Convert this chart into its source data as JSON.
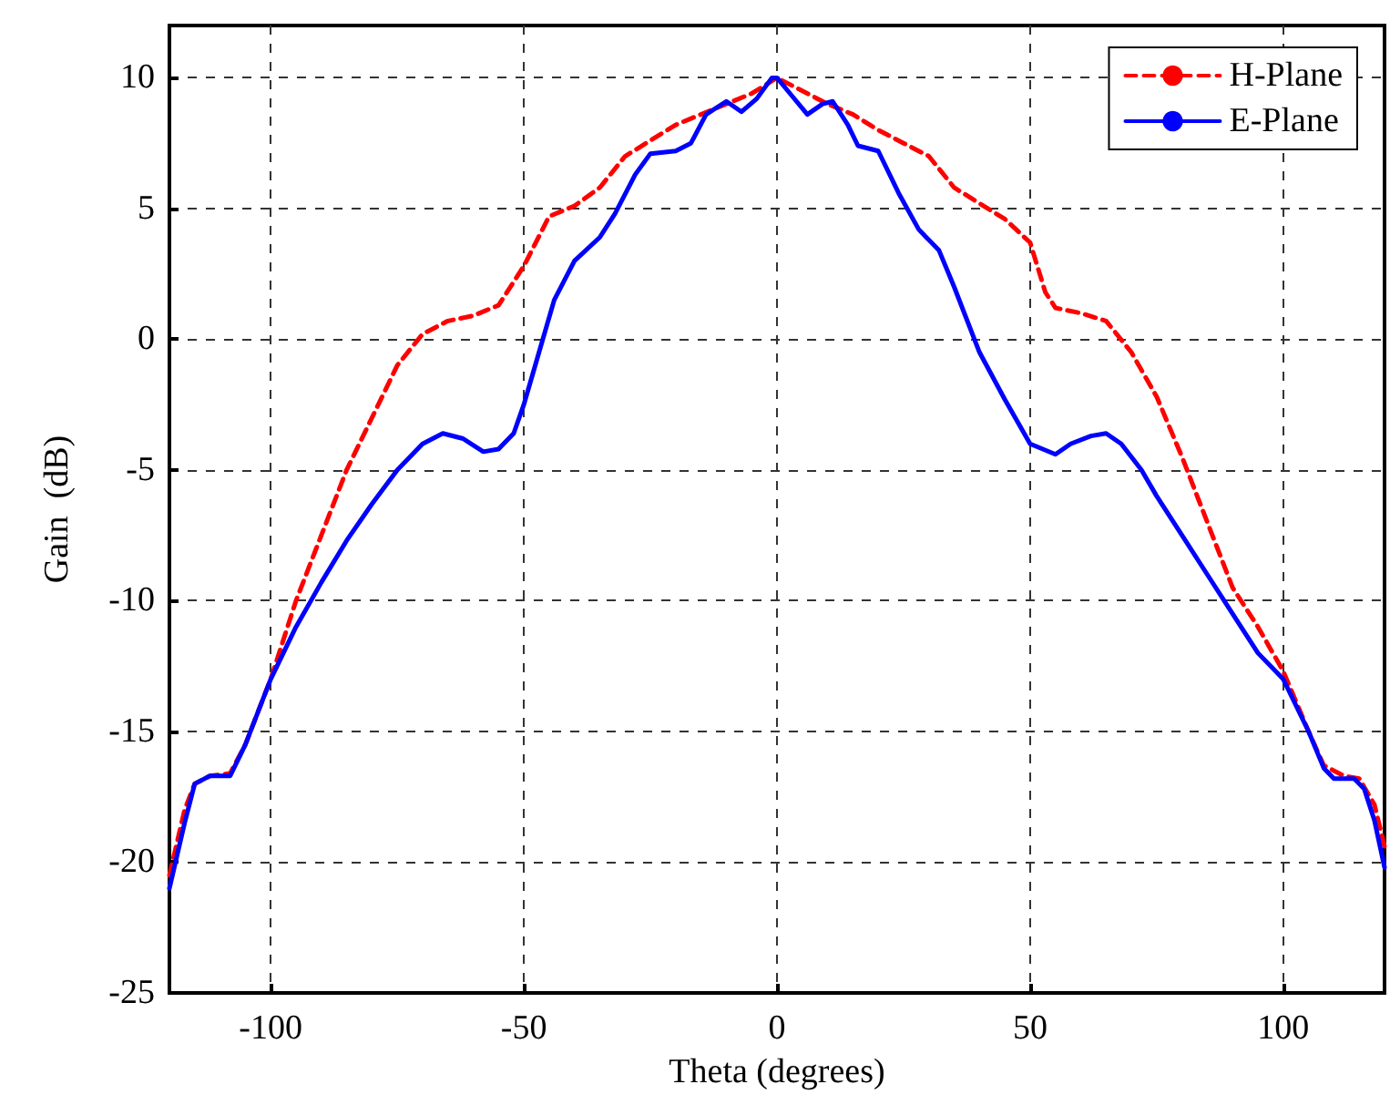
{
  "chart_data": {
    "type": "line",
    "xlabel": "Theta (degrees)",
    "ylabel": "Gain  (dB)",
    "xlim": [
      -120,
      120
    ],
    "xticks": [
      -100,
      -50,
      0,
      50,
      100
    ],
    "ylim": [
      -25,
      12
    ],
    "yticks": [
      -25,
      -20,
      -15,
      -10,
      -5,
      0,
      5,
      10
    ],
    "grid": true,
    "legend": "top right",
    "marker": "none",
    "series": [
      {
        "name": "H-Plane",
        "color": "#ff0000",
        "line_style": "dashed",
        "x": [
          -120,
          -117,
          -115,
          -112,
          -108,
          -105,
          -100,
          -95,
          -90,
          -85,
          -80,
          -75,
          -70,
          -65,
          -60,
          -55,
          -50,
          -45,
          -40,
          -35,
          -30,
          -25,
          -20,
          -15,
          -10,
          -5,
          0,
          5,
          10,
          15,
          20,
          25,
          30,
          35,
          40,
          45,
          50,
          53,
          55,
          60,
          65,
          70,
          75,
          80,
          85,
          90,
          95,
          100,
          105,
          108,
          112,
          115,
          118,
          120
        ],
        "values": [
          -20.5,
          -18,
          -17,
          -16.7,
          -16.6,
          -15.5,
          -13,
          -10,
          -7.5,
          -5,
          -3,
          -1,
          0.2,
          0.7,
          0.9,
          1.3,
          2.8,
          4.7,
          5.1,
          5.8,
          7,
          7.6,
          8.2,
          8.6,
          9,
          9.4,
          10,
          9.5,
          9,
          8.6,
          8,
          7.5,
          7,
          5.8,
          5.2,
          4.6,
          3.7,
          1.8,
          1.2,
          1,
          0.7,
          -0.5,
          -2.2,
          -4.5,
          -7,
          -9.5,
          -11,
          -12.7,
          -15,
          -16.3,
          -16.7,
          -16.8,
          -17.8,
          -19.4
        ]
      },
      {
        "name": "E-Plane",
        "color": "#0000ff",
        "line_style": "solid",
        "x": [
          -120,
          -117,
          -115,
          -112,
          -108,
          -105,
          -100,
          -95,
          -90,
          -85,
          -80,
          -75,
          -70,
          -66,
          -62,
          -58,
          -55,
          -52,
          -50,
          -47,
          -44,
          -40,
          -35,
          -32,
          -28,
          -25,
          -20,
          -17,
          -14,
          -10,
          -7,
          -4,
          -1,
          0,
          3,
          6,
          9,
          11,
          14,
          16,
          20,
          24,
          28,
          32,
          35,
          40,
          45,
          50,
          55,
          58,
          62,
          65,
          68,
          72,
          75,
          80,
          85,
          90,
          95,
          100,
          105,
          108,
          110,
          114,
          116,
          118,
          120
        ],
        "values": [
          -21,
          -18.5,
          -17,
          -16.7,
          -16.7,
          -15.5,
          -13,
          -11,
          -9.3,
          -7.7,
          -6.3,
          -5,
          -4,
          -3.6,
          -3.8,
          -4.3,
          -4.2,
          -3.6,
          -2.5,
          -0.5,
          1.5,
          3,
          3.9,
          4.8,
          6.3,
          7.1,
          7.2,
          7.5,
          8.6,
          9.1,
          8.7,
          9.2,
          10,
          10,
          9.3,
          8.6,
          9,
          9.1,
          8.2,
          7.4,
          7.2,
          5.6,
          4.2,
          3.4,
          2,
          -0.5,
          -2.3,
          -4,
          -4.4,
          -4,
          -3.7,
          -3.6,
          -4,
          -5,
          -6,
          -7.5,
          -9,
          -10.5,
          -12,
          -13,
          -15,
          -16.4,
          -16.8,
          -16.8,
          -17.2,
          -18.4,
          -20.2
        ]
      }
    ]
  }
}
